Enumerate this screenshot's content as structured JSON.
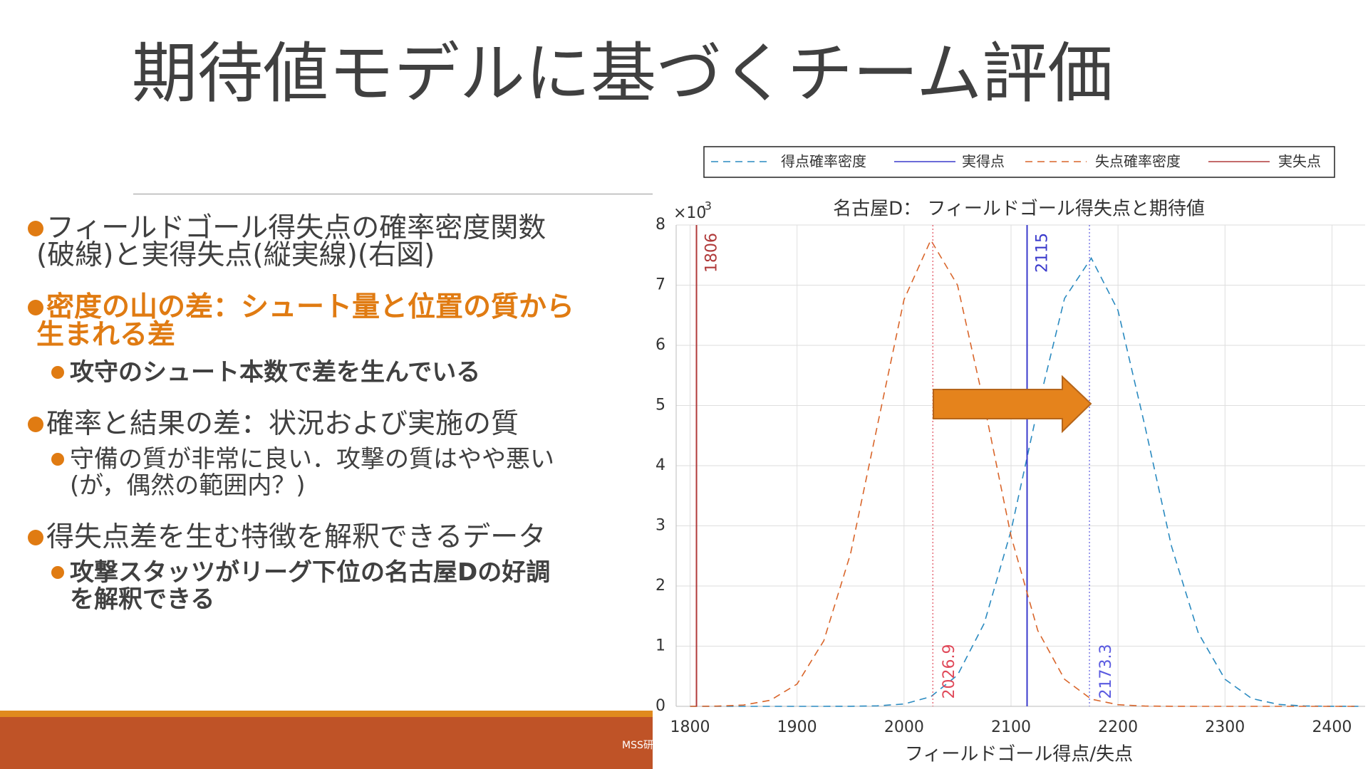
{
  "slide": {
    "title": "期待値モデルに基づくチーム評価",
    "footer": "MSS研",
    "bullets": [
      {
        "lines": [
          "フィールドゴール得失点の確率密度関数",
          "(破線)と実得失点(縦実線)(右図)"
        ]
      },
      {
        "lines": [
          "密度の山の差：シュート量と位置の質から",
          "生まれる差"
        ],
        "color": "#e07b12",
        "bold": true,
        "sub": [
          {
            "lines": [
              "攻守のシュート本数で差を生んでいる"
            ],
            "bold": true
          }
        ]
      },
      {
        "lines": [
          "確率と結果の差：状況および実施の質"
        ],
        "sub": [
          {
            "lines": [
              "守備の質が非常に良い．攻撃の質はやや悪い",
              "(が，偶然の範囲内？)"
            ]
          }
        ]
      },
      {
        "lines": [
          "得失点差を生む特徴を解釈できるデータ"
        ],
        "sub": [
          {
            "lines": [
              "攻撃スタッツがリーグ下位の名古屋Dの好調",
              "を解釈できる"
            ],
            "bold": true
          }
        ]
      }
    ]
  },
  "chart_data": {
    "type": "line",
    "title": "名古屋D： フィールドゴール得失点と期待値",
    "xlabel": "フィールドゴール得点/失点",
    "y_offset": {
      "base": "×10",
      "exponent": "-3"
    },
    "x": [
      1800,
      1825,
      1850,
      1875,
      1900,
      1925,
      1950,
      1975,
      2000,
      2025,
      2050,
      2075,
      2100,
      2125,
      2150,
      2175,
      2200,
      2225,
      2250,
      2275,
      2300,
      2325,
      2350,
      2375,
      2400,
      2425
    ],
    "series": [
      {
        "name": "得点確率密度",
        "kind": "density",
        "color": "#2a8ac0",
        "values": [
          0,
          0,
          0,
          0,
          0,
          0,
          0.001,
          0.008,
          0.039,
          0.16,
          0.52,
          1.38,
          2.92,
          4.95,
          6.78,
          7.45,
          6.58,
          4.67,
          2.66,
          1.22,
          0.45,
          0.13,
          0.032,
          0.006,
          0.001,
          0
        ]
      },
      {
        "name": "実得点",
        "kind": "actual",
        "color": "#3a3acc",
        "x": 2115
      },
      {
        "name": "失点確率密度",
        "kind": "density",
        "color": "#d9652a",
        "values": [
          0,
          0.004,
          0.021,
          0.1,
          0.37,
          1.09,
          2.54,
          4.66,
          6.76,
          7.75,
          7.0,
          5.01,
          2.83,
          1.26,
          0.45,
          0.12,
          0.027,
          0.005,
          0.001,
          0,
          0,
          0,
          0,
          0,
          0,
          0
        ]
      },
      {
        "name": "実失点",
        "kind": "actual",
        "color": "#b03a3a",
        "x": 1806
      }
    ],
    "expected": [
      {
        "x": 2026.9,
        "color": "#e04a5a"
      },
      {
        "x": 2173.3,
        "color": "#5a5ae0"
      }
    ],
    "xlim": [
      1787,
      2431
    ],
    "ylim": [
      0,
      8
    ],
    "xticks": [
      1800,
      1900,
      2000,
      2100,
      2200,
      2300,
      2400
    ],
    "yticks": [
      0,
      1,
      2,
      3,
      4,
      5,
      6,
      7,
      8
    ],
    "grid": true
  }
}
